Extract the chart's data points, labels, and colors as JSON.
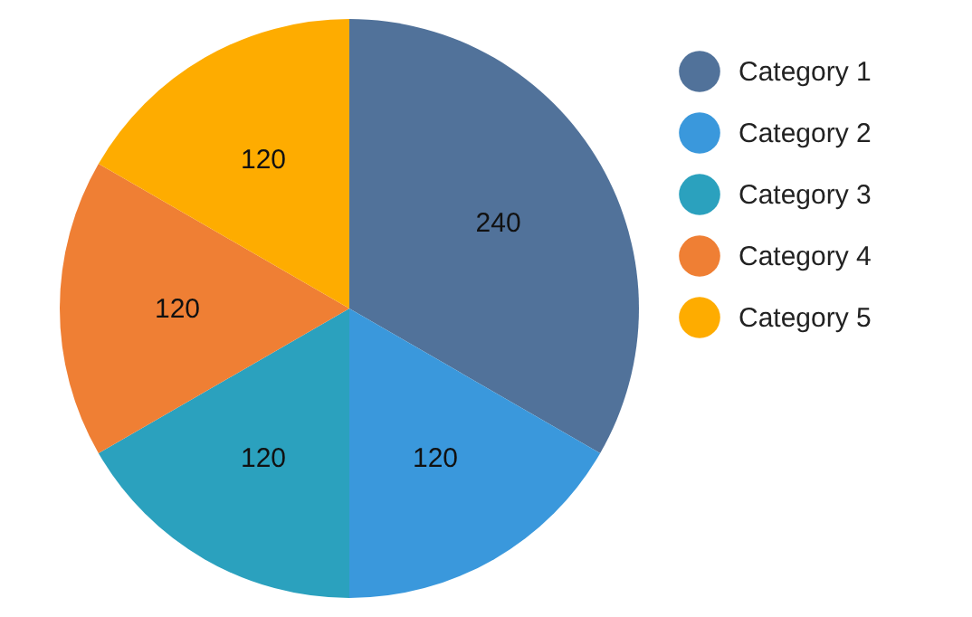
{
  "chart_data": {
    "type": "pie",
    "categories": [
      "Category 1",
      "Category 2",
      "Category 3",
      "Category 4",
      "Category 5"
    ],
    "values": [
      240,
      120,
      120,
      120,
      120
    ],
    "colors": [
      "#51729a",
      "#3a98dc",
      "#2ba1be",
      "#ef7f34",
      "#feac00"
    ],
    "data_labels": true,
    "legend": "top right"
  }
}
